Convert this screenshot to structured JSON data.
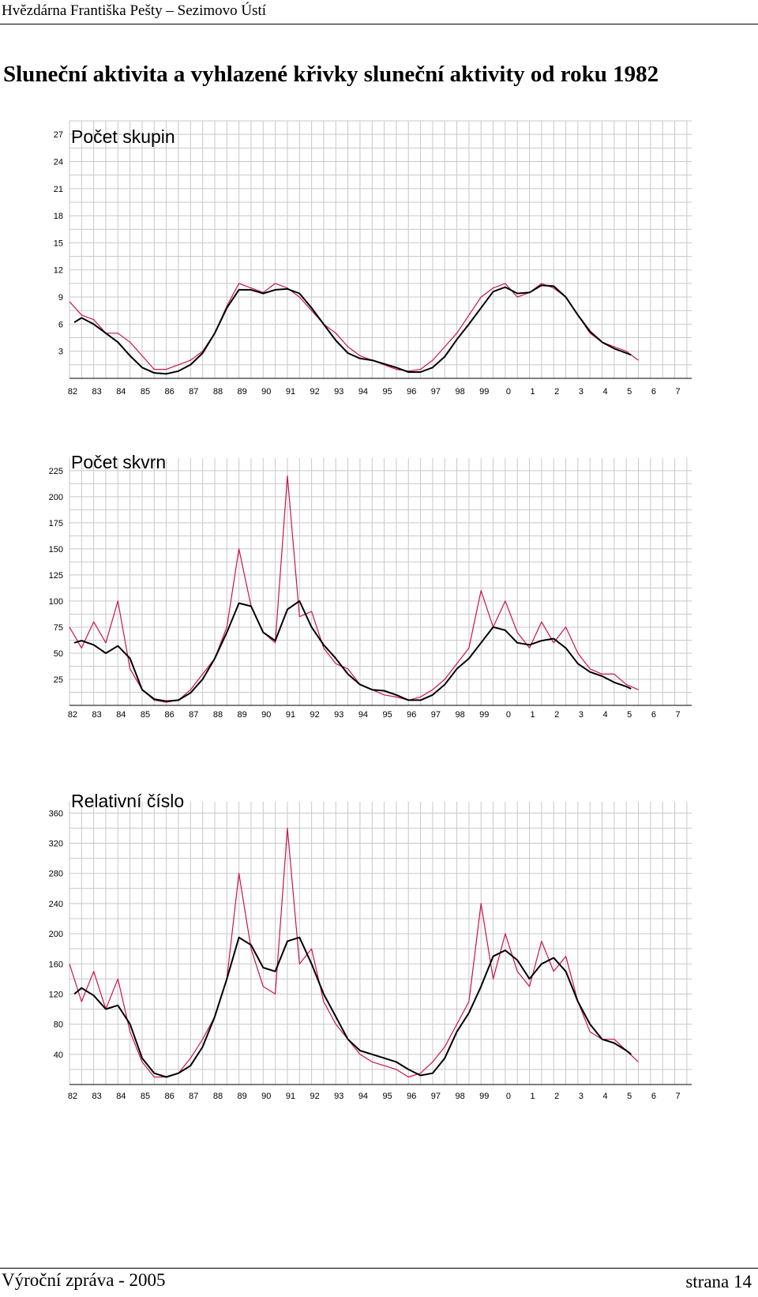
{
  "header": {
    "text": "Hvězdárna Františka Pešty – Sezimovo Ústí"
  },
  "document": {
    "title": "Sluneční aktivita a vyhlazené křivky sluneční aktivity od roku 1982"
  },
  "footer": {
    "left": "Výroční zpráva - 2005",
    "right": "strana  14"
  },
  "colors": {
    "monthly": "#cc1155",
    "smoothed": "#000000",
    "grid": "#c8c8c8"
  },
  "chart_data": [
    {
      "type": "line",
      "title": "Počet skupin",
      "x_tick_labels": [
        "82",
        "83",
        "84",
        "85",
        "86",
        "87",
        "88",
        "89",
        "90",
        "91",
        "92",
        "93",
        "94",
        "95",
        "96",
        "97",
        "98",
        "99",
        "0",
        "1",
        "2",
        "3",
        "4",
        "5",
        "6",
        "7"
      ],
      "x_range": [
        1982,
        2007.7
      ],
      "y_ticks": [
        3,
        6,
        9,
        12,
        15,
        18,
        21,
        24,
        27
      ],
      "y_range": [
        0,
        28.5
      ],
      "grid": true,
      "series": [
        {
          "key": "monthly",
          "style": "monthly",
          "x": [
            1982.0,
            1982.5,
            1983.0,
            1983.5,
            1984.0,
            1984.5,
            1985.0,
            1985.5,
            1986.0,
            1986.5,
            1987.0,
            1987.5,
            1988.0,
            1988.5,
            1989.0,
            1989.5,
            1990.0,
            1990.5,
            1991.0,
            1991.5,
            1992.0,
            1992.5,
            1993.0,
            1993.5,
            1994.0,
            1994.5,
            1995.0,
            1995.5,
            1996.0,
            1996.5,
            1997.0,
            1997.5,
            1998.0,
            1998.5,
            1999.0,
            1999.5,
            2000.0,
            2000.5,
            2001.0,
            2001.5,
            2002.0,
            2002.5,
            2003.0,
            2003.5,
            2004.0,
            2004.5,
            2005.0,
            2005.5
          ],
          "y": [
            8.5,
            7,
            6.5,
            5,
            5,
            4,
            2.5,
            1,
            1,
            1.5,
            2,
            3,
            5,
            8,
            10.5,
            10,
            9.5,
            10.5,
            10,
            9,
            7.5,
            6,
            5,
            3.5,
            2.5,
            2,
            1.5,
            1,
            0.8,
            1,
            2,
            3.5,
            5,
            7,
            9,
            10,
            10.5,
            9,
            9.5,
            10.5,
            10,
            9,
            7,
            5,
            4,
            3.5,
            3,
            2
          ]
        },
        {
          "key": "smoothed",
          "style": "smoothed",
          "x": [
            1982.2,
            1982.5,
            1983.0,
            1983.5,
            1984.0,
            1984.5,
            1985.0,
            1985.5,
            1986.0,
            1986.5,
            1987.0,
            1987.5,
            1988.0,
            1988.5,
            1989.0,
            1989.5,
            1990.0,
            1990.5,
            1991.0,
            1991.5,
            1992.0,
            1992.5,
            1993.0,
            1993.5,
            1994.0,
            1994.5,
            1995.0,
            1995.5,
            1996.0,
            1996.5,
            1997.0,
            1997.5,
            1998.0,
            1998.5,
            1999.0,
            1999.5,
            2000.0,
            2000.5,
            2001.0,
            2001.5,
            2002.0,
            2002.5,
            2003.0,
            2003.5,
            2004.0,
            2004.5,
            2005.0,
            2005.2
          ],
          "y": [
            6.2,
            6.7,
            6,
            5,
            4,
            2.5,
            1.2,
            0.6,
            0.5,
            0.8,
            1.5,
            2.8,
            5,
            7.8,
            9.8,
            9.8,
            9.4,
            9.8,
            9.9,
            9.4,
            7.8,
            6,
            4.2,
            2.8,
            2.2,
            2,
            1.6,
            1.2,
            0.7,
            0.7,
            1.2,
            2.4,
            4.3,
            6,
            7.8,
            9.6,
            10.1,
            9.4,
            9.5,
            10.3,
            10.2,
            9,
            7,
            5.2,
            4,
            3.3,
            2.8,
            2.6
          ]
        }
      ]
    },
    {
      "type": "line",
      "title": "Počet skvrn",
      "x_tick_labels": [
        "82",
        "83",
        "84",
        "85",
        "86",
        "87",
        "88",
        "89",
        "90",
        "91",
        "92",
        "93",
        "94",
        "95",
        "96",
        "97",
        "98",
        "99",
        "0",
        "1",
        "2",
        "3",
        "4",
        "5",
        "6",
        "7"
      ],
      "x_range": [
        1982,
        2007.7
      ],
      "y_ticks": [
        25,
        50,
        75,
        100,
        125,
        150,
        175,
        200,
        225
      ],
      "y_range": [
        0,
        237
      ],
      "grid": true,
      "series": [
        {
          "key": "monthly",
          "style": "monthly",
          "x": [
            1982.0,
            1982.5,
            1983.0,
            1983.5,
            1984.0,
            1984.5,
            1985.0,
            1985.5,
            1986.0,
            1986.5,
            1987.0,
            1987.5,
            1988.0,
            1988.5,
            1989.0,
            1989.5,
            1990.0,
            1990.5,
            1991.0,
            1991.5,
            1992.0,
            1992.5,
            1993.0,
            1993.5,
            1994.0,
            1994.5,
            1995.0,
            1995.5,
            1996.0,
            1996.5,
            1997.0,
            1997.5,
            1998.0,
            1998.5,
            1999.0,
            1999.5,
            2000.0,
            2000.5,
            2001.0,
            2001.5,
            2002.0,
            2002.5,
            2003.0,
            2003.5,
            2004.0,
            2004.5,
            2005.0,
            2005.5
          ],
          "y": [
            75,
            55,
            80,
            60,
            100,
            35,
            15,
            5,
            3,
            5,
            15,
            30,
            45,
            75,
            150,
            95,
            70,
            60,
            220,
            85,
            90,
            55,
            40,
            35,
            20,
            15,
            10,
            8,
            5,
            8,
            15,
            25,
            40,
            55,
            110,
            75,
            100,
            70,
            55,
            80,
            60,
            75,
            50,
            35,
            30,
            30,
            20,
            15
          ]
        },
        {
          "key": "smoothed",
          "style": "smoothed",
          "x": [
            1982.2,
            1982.5,
            1983.0,
            1983.5,
            1984.0,
            1984.5,
            1985.0,
            1985.5,
            1986.0,
            1986.5,
            1987.0,
            1987.5,
            1988.0,
            1988.5,
            1989.0,
            1989.5,
            1990.0,
            1990.5,
            1991.0,
            1991.5,
            1992.0,
            1992.5,
            1993.0,
            1993.5,
            1994.0,
            1994.5,
            1995.0,
            1995.5,
            1996.0,
            1996.5,
            1997.0,
            1997.5,
            1998.0,
            1998.5,
            1999.0,
            1999.5,
            2000.0,
            2000.5,
            2001.0,
            2001.5,
            2002.0,
            2002.5,
            2003.0,
            2003.5,
            2004.0,
            2004.5,
            2005.0,
            2005.2
          ],
          "y": [
            60,
            62,
            58,
            50,
            57,
            45,
            15,
            6,
            4,
            5,
            12,
            25,
            45,
            70,
            98,
            95,
            70,
            62,
            92,
            100,
            75,
            58,
            45,
            30,
            20,
            15,
            14,
            10,
            5,
            5,
            10,
            20,
            35,
            45,
            60,
            75,
            72,
            60,
            58,
            62,
            64,
            55,
            40,
            32,
            28,
            22,
            18,
            16
          ]
        }
      ]
    },
    {
      "type": "line",
      "title": "Relativní číslo",
      "x_tick_labels": [
        "82",
        "83",
        "84",
        "85",
        "86",
        "87",
        "88",
        "89",
        "90",
        "91",
        "92",
        "93",
        "94",
        "95",
        "96",
        "97",
        "98",
        "99",
        "0",
        "1",
        "2",
        "3",
        "4",
        "5",
        "6",
        "7"
      ],
      "x_range": [
        1982,
        2007.7
      ],
      "y_ticks": [
        40,
        80,
        120,
        160,
        200,
        240,
        280,
        320,
        360
      ],
      "y_range": [
        0,
        375
      ],
      "grid": true,
      "series": [
        {
          "key": "monthly",
          "style": "monthly",
          "x": [
            1982.0,
            1982.5,
            1983.0,
            1983.5,
            1984.0,
            1984.5,
            1985.0,
            1985.5,
            1986.0,
            1986.5,
            1987.0,
            1987.5,
            1988.0,
            1988.5,
            1989.0,
            1989.5,
            1990.0,
            1990.5,
            1991.0,
            1991.5,
            1992.0,
            1992.5,
            1993.0,
            1993.5,
            1994.0,
            1994.5,
            1995.0,
            1995.5,
            1996.0,
            1996.5,
            1997.0,
            1997.5,
            1998.0,
            1998.5,
            1999.0,
            1999.5,
            2000.0,
            2000.5,
            2001.0,
            2001.5,
            2002.0,
            2002.5,
            2003.0,
            2003.5,
            2004.0,
            2004.5,
            2005.0,
            2005.5
          ],
          "y": [
            160,
            110,
            150,
            100,
            140,
            70,
            30,
            10,
            10,
            15,
            35,
            60,
            90,
            140,
            280,
            180,
            130,
            120,
            340,
            160,
            180,
            110,
            80,
            60,
            40,
            30,
            25,
            20,
            10,
            15,
            30,
            50,
            80,
            110,
            240,
            140,
            200,
            150,
            130,
            190,
            150,
            170,
            110,
            70,
            60,
            60,
            45,
            30
          ]
        },
        {
          "key": "smoothed",
          "style": "smoothed",
          "x": [
            1982.2,
            1982.5,
            1983.0,
            1983.5,
            1984.0,
            1984.5,
            1985.0,
            1985.5,
            1986.0,
            1986.5,
            1987.0,
            1987.5,
            1988.0,
            1988.5,
            1989.0,
            1989.5,
            1990.0,
            1990.5,
            1991.0,
            1991.5,
            1992.0,
            1992.5,
            1993.0,
            1993.5,
            1994.0,
            1994.5,
            1995.0,
            1995.5,
            1996.0,
            1996.5,
            1997.0,
            1997.5,
            1998.0,
            1998.5,
            1999.0,
            1999.5,
            2000.0,
            2000.5,
            2001.0,
            2001.5,
            2002.0,
            2002.5,
            2003.0,
            2003.5,
            2004.0,
            2004.5,
            2005.0,
            2005.2
          ],
          "y": [
            120,
            128,
            118,
            100,
            105,
            80,
            35,
            15,
            10,
            15,
            25,
            50,
            90,
            140,
            195,
            185,
            155,
            150,
            190,
            195,
            160,
            120,
            90,
            60,
            45,
            40,
            35,
            30,
            20,
            12,
            15,
            35,
            70,
            95,
            130,
            170,
            178,
            165,
            140,
            160,
            168,
            150,
            110,
            80,
            60,
            55,
            45,
            40
          ]
        }
      ]
    }
  ]
}
